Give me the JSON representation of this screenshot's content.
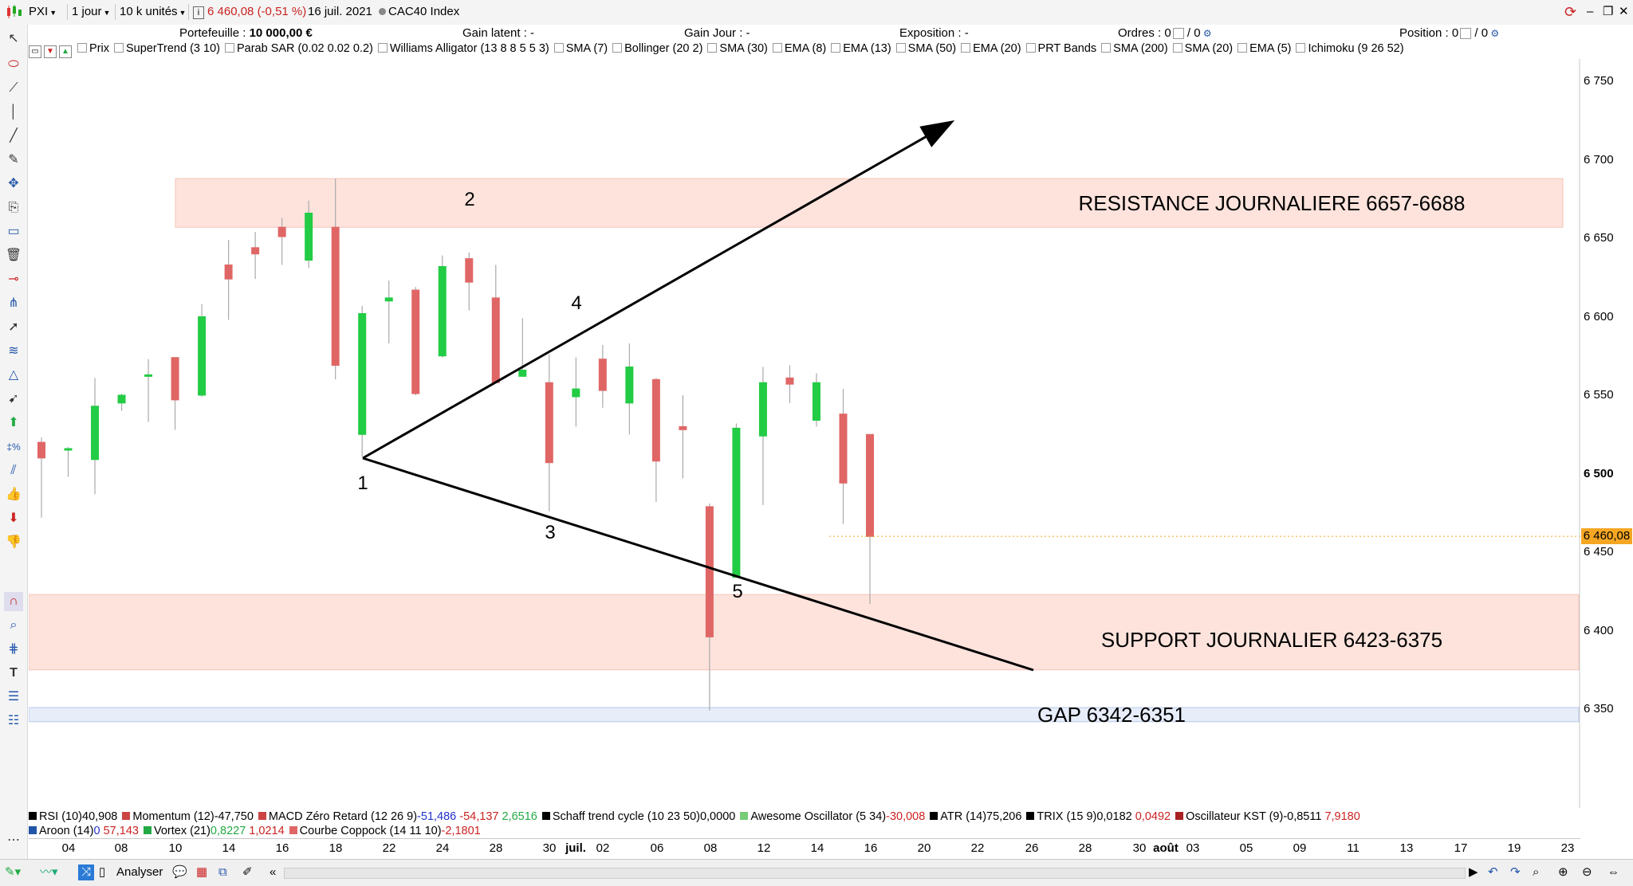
{
  "toolbar": {
    "symbol": "PXI",
    "period": "1 jour",
    "units": "10 k unités",
    "last_price": "6 460,08",
    "change": "(-0,51 %)",
    "date": "16 juil. 2021",
    "instrument": "CAC40 Index"
  },
  "info": {
    "portefeuille_label": "Portefeuille :",
    "portefeuille_value": "10 000,00 €",
    "gain_latent": "Gain latent : -",
    "gain_jour": "Gain Jour : -",
    "exposition": "Exposition : -",
    "ordres_label": "Ordres :",
    "ordres_a": "0",
    "ordres_b": "/ 0",
    "position_label": "Position :",
    "position_a": "0",
    "position_b": "/ 0"
  },
  "indicators": [
    "Prix",
    "SuperTrend (3 10)",
    "Parab SAR (0.02 0.02 0.2)",
    "Williams Alligator (13 8 8 5 5 3)",
    "SMA (7)",
    "Bollinger (20 2)",
    "SMA (30)",
    "EMA (8)",
    "EMA (13)",
    "SMA (50)",
    "EMA (20)",
    "PRT Bands",
    "SMA (200)",
    "SMA (20)",
    "EMA (5)",
    "Ichimoku (9 26 52)"
  ],
  "chart_data": {
    "type": "candlestick",
    "title": "CAC40 Index",
    "ylim": [
      6310,
      6780
    ],
    "y_ticks": [
      6350,
      6400,
      6450,
      6500,
      6550,
      6600,
      6650,
      6700,
      6750
    ],
    "y_tick_labels": [
      "6 350",
      "6 400",
      "6 450",
      "6 500",
      "6 550",
      "6 600",
      "6 650",
      "6 700",
      "6 750"
    ],
    "x_tick_labels": [
      "04",
      "08",
      "10",
      "14",
      "16",
      "18",
      "22",
      "24",
      "28",
      "30",
      "juil.",
      "02",
      "06",
      "08",
      "12",
      "14",
      "16",
      "20",
      "22",
      "26",
      "28",
      "30",
      "août",
      "03",
      "05",
      "09",
      "11",
      "13",
      "17",
      "19",
      "23"
    ],
    "current_price": "6 460,08",
    "candles": [
      {
        "o": 6520,
        "h": 6523,
        "l": 6472,
        "c": 6510
      },
      {
        "o": 6515,
        "h": 6517,
        "l": 6498,
        "c": 6516
      },
      {
        "o": 6509,
        "h": 6561,
        "l": 6487,
        "c": 6543
      },
      {
        "o": 6545,
        "h": 6551,
        "l": 6540,
        "c": 6550
      },
      {
        "o": 6562,
        "h": 6573,
        "l": 6533,
        "c": 6563
      },
      {
        "o": 6574,
        "h": 6574,
        "l": 6528,
        "c": 6547
      },
      {
        "o": 6550,
        "h": 6608,
        "l": 6549,
        "c": 6600
      },
      {
        "o": 6633,
        "h": 6649,
        "l": 6598,
        "c": 6624
      },
      {
        "o": 6644,
        "h": 6654,
        "l": 6624,
        "c": 6640
      },
      {
        "o": 6657,
        "h": 6663,
        "l": 6633,
        "c": 6651
      },
      {
        "o": 6636,
        "h": 6674,
        "l": 6631,
        "c": 6666
      },
      {
        "o": 6657,
        "h": 6688,
        "l": 6560,
        "c": 6569
      },
      {
        "o": 6525,
        "h": 6607,
        "l": 6511,
        "c": 6602
      },
      {
        "o": 6610,
        "h": 6623,
        "l": 6583,
        "c": 6612
      },
      {
        "o": 6617,
        "h": 6619,
        "l": 6550,
        "c": 6551
      },
      {
        "o": 6575,
        "h": 6639,
        "l": 6574,
        "c": 6632
      },
      {
        "o": 6637,
        "h": 6641,
        "l": 6604,
        "c": 6622
      },
      {
        "o": 6612,
        "h": 6633,
        "l": 6558,
        "c": 6558
      },
      {
        "o": 6562,
        "h": 6599,
        "l": 6562,
        "c": 6566
      },
      {
        "o": 6558,
        "h": 6576,
        "l": 6476,
        "c": 6507
      },
      {
        "o": 6549,
        "h": 6574,
        "l": 6530,
        "c": 6554
      },
      {
        "o": 6573,
        "h": 6582,
        "l": 6542,
        "c": 6553
      },
      {
        "o": 6545,
        "h": 6583,
        "l": 6525,
        "c": 6568
      },
      {
        "o": 6560,
        "h": 6561,
        "l": 6482,
        "c": 6508
      },
      {
        "o": 6530,
        "h": 6550,
        "l": 6497,
        "c": 6528
      },
      {
        "o": 6479,
        "h": 6481,
        "l": 6349,
        "c": 6396
      },
      {
        "o": 6434,
        "h": 6532,
        "l": 6434,
        "c": 6529
      },
      {
        "o": 6524,
        "h": 6568,
        "l": 6480,
        "c": 6558
      },
      {
        "o": 6561,
        "h": 6569,
        "l": 6545,
        "c": 6557
      },
      {
        "o": 6534,
        "h": 6564,
        "l": 6530,
        "c": 6558
      },
      {
        "o": 6538,
        "h": 6554,
        "l": 6468,
        "c": 6494
      },
      {
        "o": 6525,
        "h": 6525,
        "l": 6417,
        "c": 6460
      }
    ],
    "zones": [
      {
        "label": "RESISTANCE JOURNALIERE 6657-6688",
        "low": 6657,
        "high": 6688,
        "color": "#fde3dc"
      },
      {
        "label": "SUPPORT JOURNALIER 6423-6375",
        "low": 6375,
        "high": 6423,
        "color": "#fde3dc"
      },
      {
        "label": "GAP 6342-6351",
        "low": 6342,
        "high": 6351,
        "color": "#e7edf9"
      }
    ],
    "point_labels": [
      "1",
      "2",
      "3",
      "4",
      "5"
    ],
    "colors": {
      "up": "#22cc44",
      "down": "#e06666",
      "zone": "#fde3dc",
      "gap": "#e7edf9",
      "line": "#000000",
      "price_tag": "#f5a623"
    }
  },
  "bottom": {
    "row1": [
      {
        "name": "RSI (10)",
        "v": [
          "40,908"
        ],
        "c": [
          "#000"
        ]
      },
      {
        "name": "Momentum (12)",
        "v": [
          "-47,750"
        ],
        "c": [
          "#000"
        ]
      },
      {
        "name": "MACD Zéro Retard (12 26 9)",
        "v": [
          "-51,486",
          "-54,137",
          "2,6516"
        ],
        "c": [
          "#2233cc",
          "#cc2222",
          "#22aa44"
        ]
      },
      {
        "name": "Schaff trend cycle (10 23 50)",
        "v": [
          "0,0000"
        ],
        "c": [
          "#000"
        ]
      },
      {
        "name": "Awesome Oscillator (5 34)",
        "v": [
          "-30,008"
        ],
        "c": [
          "#cc2222"
        ]
      },
      {
        "name": "ATR (14)",
        "v": [
          "75,206"
        ],
        "c": [
          "#000"
        ]
      },
      {
        "name": "TRIX (15 9)",
        "v": [
          "0,0182",
          "0,0492"
        ],
        "c": [
          "#000",
          "#cc2222"
        ]
      },
      {
        "name": "Oscillateur KST (9)",
        "v": [
          "-0,8511",
          "7,9180"
        ],
        "c": [
          "#000",
          "#cc2222"
        ]
      }
    ],
    "row2": [
      {
        "name": "Aroon (14)",
        "v": [
          "0",
          "57,143"
        ],
        "c": [
          "#2233cc",
          "#cc2222"
        ]
      },
      {
        "name": "Vortex (21)",
        "v": [
          "0,8227",
          "1,0214"
        ],
        "c": [
          "#22aa44",
          "#cc2222"
        ]
      },
      {
        "name": "Courbe Coppock (14 11 10)",
        "v": [
          "-2,1801"
        ],
        "c": [
          "#cc2222"
        ]
      }
    ]
  },
  "footer": {
    "analyser": "Analyser"
  }
}
